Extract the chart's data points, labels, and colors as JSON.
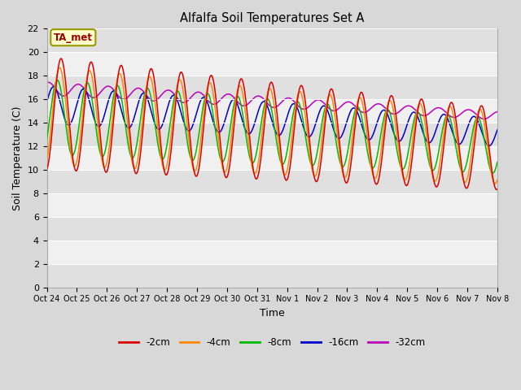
{
  "title": "Alfalfa Soil Temperatures Set A",
  "xlabel": "Time",
  "ylabel": "Soil Temperature (C)",
  "annotation": "TA_met",
  "ylim": [
    0,
    22
  ],
  "yticks": [
    0,
    2,
    4,
    6,
    8,
    10,
    12,
    14,
    16,
    18,
    20,
    22
  ],
  "xtick_labels": [
    "Oct 24",
    "Oct 25",
    "Oct 26",
    "Oct 27",
    "Oct 28",
    "Oct 29",
    "Oct 30",
    "Oct 31",
    "Nov 1",
    "Nov 2",
    "Nov 3",
    "Nov 4",
    "Nov 5",
    "Nov 6",
    "Nov 7",
    "Nov 8"
  ],
  "colors": {
    "-2cm": "#dd0000",
    "-4cm": "#ff8800",
    "-8cm": "#00bb00",
    "-16cm": "#0000cc",
    "-32cm": "#bb00bb"
  },
  "bg_color": "#d8d8d8",
  "plot_bg_light": "#f0f0f0",
  "plot_bg_dark": "#e0e0e0",
  "legend_labels": [
    "-2cm",
    "-4cm",
    "-8cm",
    "-16cm",
    "-32cm"
  ]
}
